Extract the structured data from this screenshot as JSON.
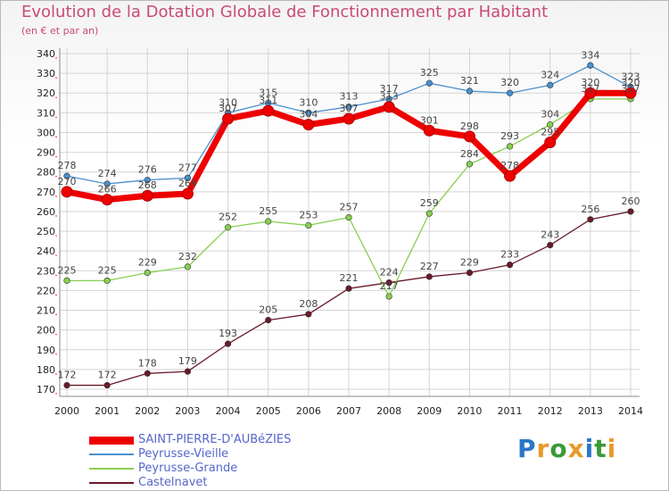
{
  "title": "Evolution de la Dotation Globale de Fonctionnement par Habitant",
  "subtitle": "(en € et par an)",
  "logo": {
    "text": "Proxiti",
    "colors": [
      "#2a78c8",
      "#e89a2a",
      "#3a9a3a",
      "#e89a2a",
      "#2a78c8",
      "#3a9a3a",
      "#e89a2a"
    ]
  },
  "chart_data": {
    "type": "line",
    "x": [
      "2000",
      "2001",
      "2002",
      "2003",
      "2004",
      "2005",
      "2006",
      "2007",
      "2008",
      "2009",
      "2010",
      "2011",
      "2012",
      "2013",
      "2014"
    ],
    "ylim": [
      170,
      340
    ],
    "yticks": [
      170,
      180,
      190,
      200,
      210,
      220,
      230,
      240,
      250,
      260,
      270,
      280,
      290,
      300,
      310,
      320,
      330,
      340
    ],
    "grid": true,
    "series": [
      {
        "name": "SAINT-PIERRE-D'AUBéZIES",
        "color": "#ee0000",
        "values": [
          270,
          266,
          268,
          269,
          307,
          311,
          304,
          307,
          313,
          301,
          298,
          278,
          295,
          320,
          320
        ]
      },
      {
        "name": "Peyrusse-Vieille",
        "color": "#4a90d0",
        "values": [
          278,
          274,
          276,
          277,
          310,
          315,
          310,
          313,
          317,
          325,
          321,
          320,
          324,
          334,
          323
        ]
      },
      {
        "name": "Peyrusse-Grande",
        "color": "#88d050",
        "values": [
          225,
          225,
          229,
          232,
          252,
          255,
          253,
          257,
          217,
          259,
          284,
          293,
          304,
          317,
          317
        ]
      },
      {
        "name": "Castelnavet",
        "color": "#6a1a2a",
        "values": [
          172,
          172,
          178,
          179,
          193,
          205,
          208,
          221,
          224,
          227,
          229,
          233,
          243,
          256,
          260
        ]
      }
    ]
  }
}
